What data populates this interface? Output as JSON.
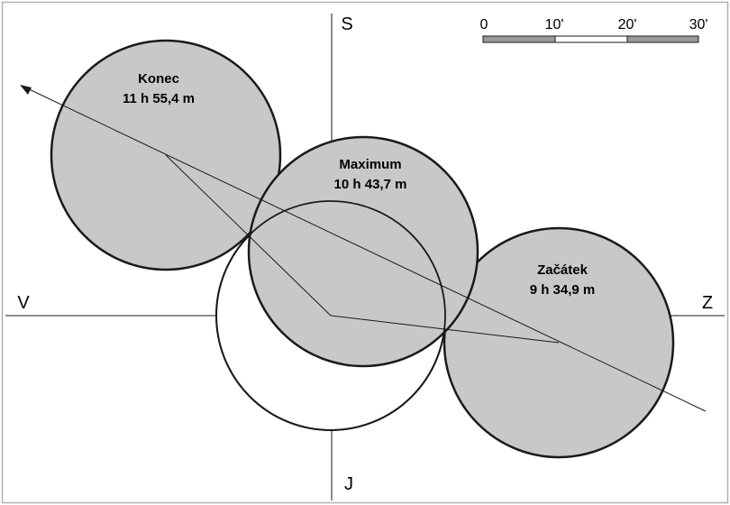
{
  "directions": {
    "north": "S",
    "south": "J",
    "east": "V",
    "west": "Z"
  },
  "scale": {
    "ticks": [
      "0",
      "10'",
      "20'",
      "30'"
    ],
    "segment_colors": [
      "#9a9a9a",
      "#ffffff",
      "#9a9a9a"
    ]
  },
  "phases": {
    "end": {
      "name": "Konec",
      "time": "11 h 55,4 m"
    },
    "max": {
      "name": "Maximum",
      "time": "10 h 43,7 m"
    },
    "start": {
      "name": "Začátek",
      "time": "9 h 34,9 m"
    }
  },
  "colors": {
    "moon_fill": "#c8c8c8",
    "sun_fill": "#ffffff",
    "stroke": "#1a1a1a",
    "border": "#b0b0b0"
  }
}
